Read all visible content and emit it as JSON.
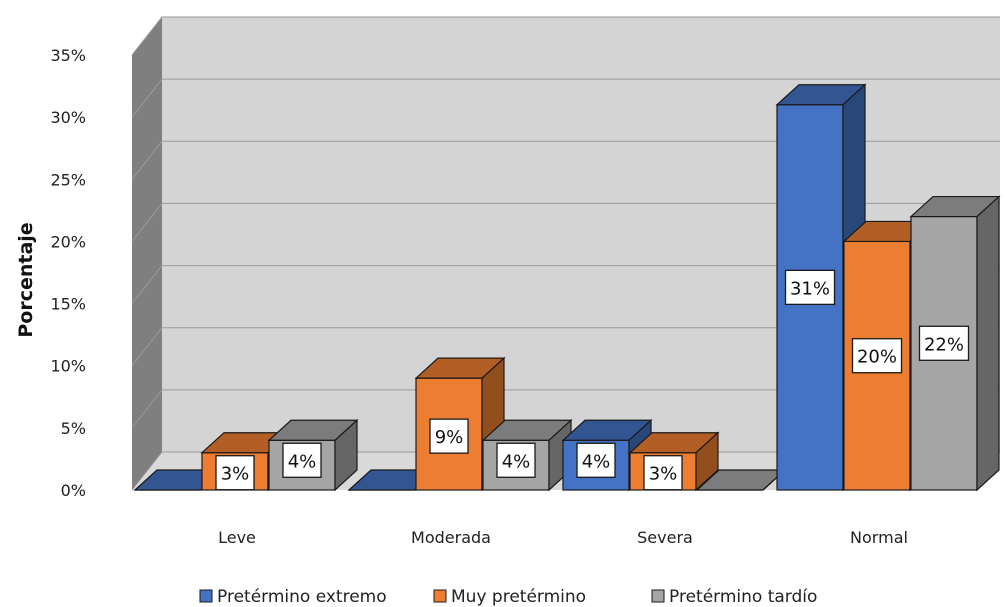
{
  "chart_data": {
    "type": "bar",
    "title": "",
    "xlabel": "",
    "ylabel": "Porcentaje",
    "ylim": [
      0,
      35
    ],
    "yticks": [
      "0%",
      "5%",
      "10%",
      "15%",
      "20%",
      "25%",
      "30%",
      "35%"
    ],
    "categories": [
      "Leve",
      "Moderada",
      "Severa",
      "Normal"
    ],
    "series": [
      {
        "name": "Pretérmino extremo",
        "values": [
          0,
          0,
          4,
          31
        ],
        "labels": [
          "",
          "",
          "4%",
          "31%"
        ],
        "color": "#4472c4"
      },
      {
        "name": "Muy pretérmino",
        "values": [
          3,
          9,
          3,
          20
        ],
        "labels": [
          "3%",
          "9%",
          "3%",
          "20%"
        ],
        "color": "#ed7d31"
      },
      {
        "name": "Pretérmino tardío",
        "values": [
          4,
          4,
          0,
          22
        ],
        "labels": [
          "4%",
          "4%",
          "",
          "22%"
        ],
        "color": "#a5a5a5"
      }
    ],
    "legend_position": "bottom",
    "grid": true,
    "style": "3d-clustered-column"
  }
}
